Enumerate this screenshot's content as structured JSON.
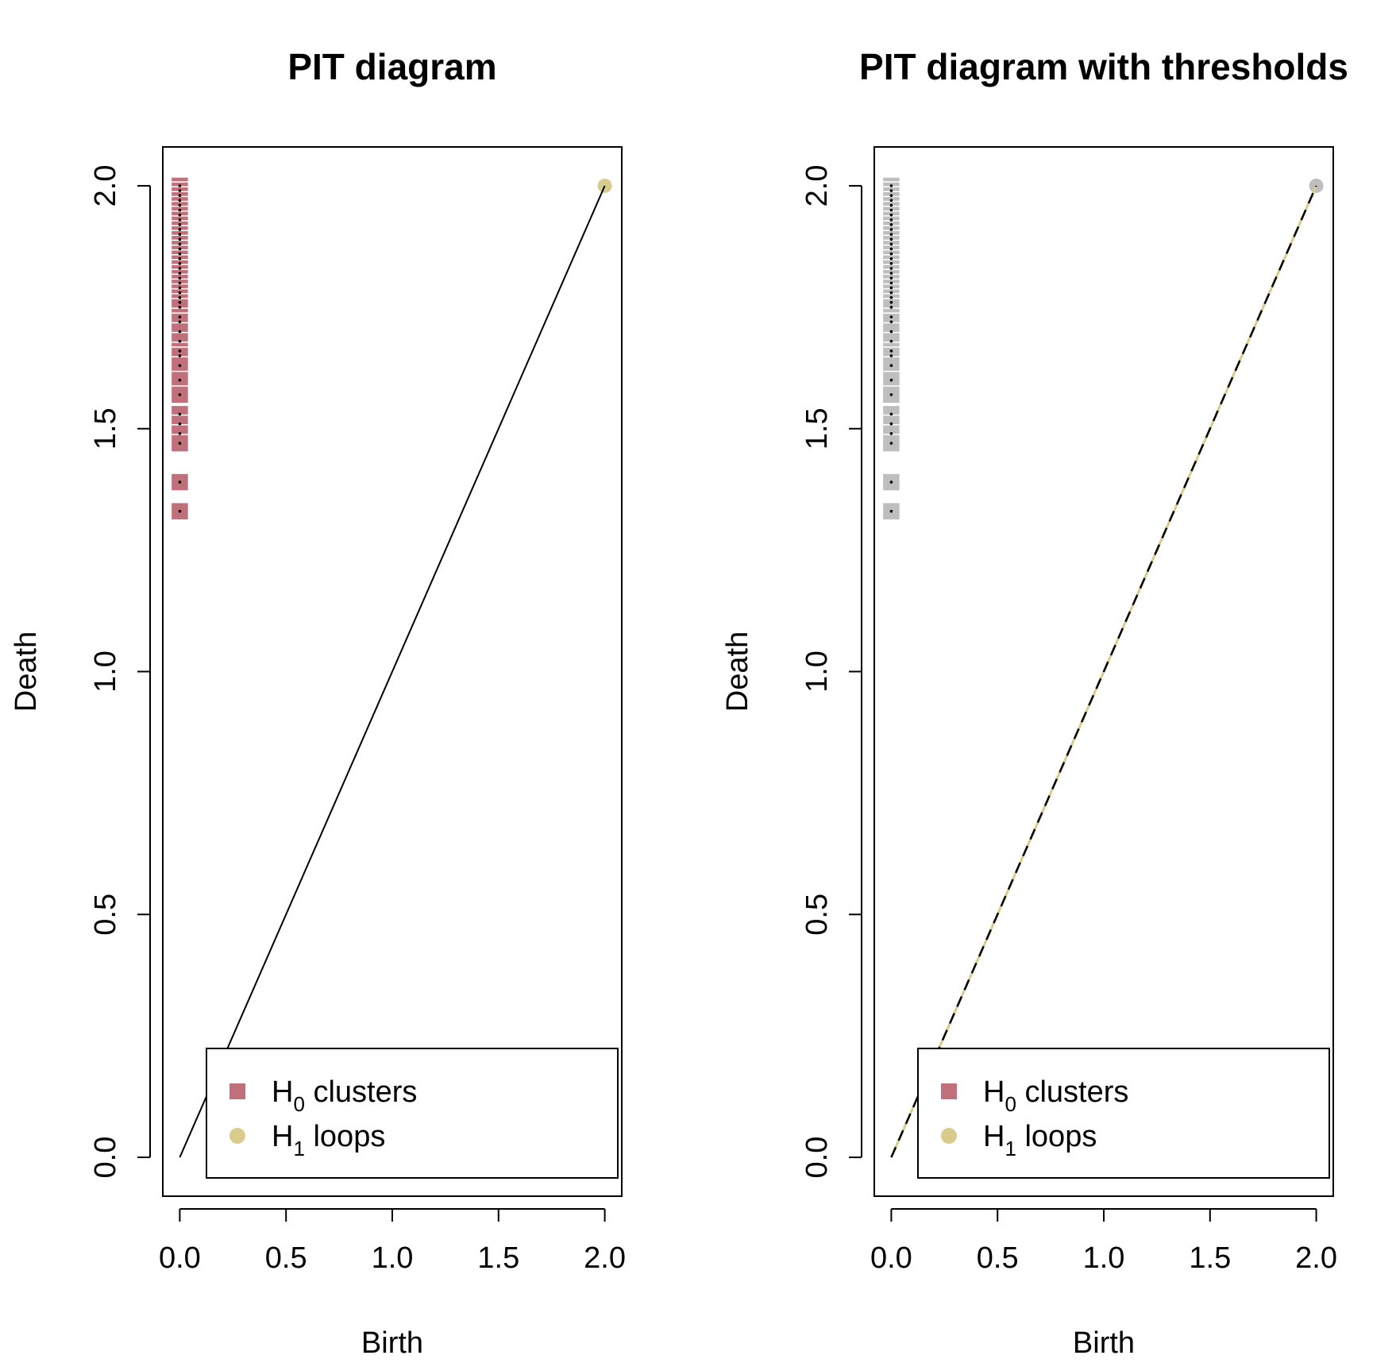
{
  "chart_data": [
    {
      "type": "scatter",
      "title": "PIT  diagram",
      "xlabel": "Birth",
      "ylabel": "Death",
      "xlim": [
        0,
        2
      ],
      "ylim": [
        0,
        2
      ],
      "xticks": [
        "0.0",
        "0.5",
        "1.0",
        "1.5",
        "2.0"
      ],
      "yticks": [
        "0.0",
        "0.5",
        "1.0",
        "1.5",
        "2.0"
      ],
      "grid": false,
      "diagonal": {
        "style": "solid",
        "color": "#000000"
      },
      "legend_position": "bottom-right",
      "legend": [
        {
          "label": "H",
          "sub": "0",
          "rest": "  clusters",
          "marker": "square",
          "color": "#c0707a"
        },
        {
          "label": "H",
          "sub": "1",
          "rest": "  loops",
          "marker": "circle",
          "color": "#d9cb8b"
        }
      ],
      "series": [
        {
          "name": "H0 clusters",
          "marker": "square",
          "color": "#c0707a",
          "x": 0,
          "y": [
            2.0,
            1.99,
            1.98,
            1.97,
            1.96,
            1.95,
            1.94,
            1.93,
            1.92,
            1.91,
            1.9,
            1.89,
            1.88,
            1.87,
            1.86,
            1.85,
            1.84,
            1.83,
            1.82,
            1.81,
            1.8,
            1.79,
            1.78,
            1.77,
            1.76,
            1.75,
            1.73,
            1.72,
            1.7,
            1.68,
            1.66,
            1.65,
            1.63,
            1.6,
            1.57,
            1.53,
            1.51,
            1.49,
            1.47,
            1.39,
            1.33
          ]
        },
        {
          "name": "H1 loops",
          "marker": "circle",
          "color": "#d9cb8b",
          "x": [
            2.0
          ],
          "y": [
            2.0
          ]
        }
      ]
    },
    {
      "type": "scatter",
      "title": "PIT  diagram with thresholds",
      "xlabel": "Birth",
      "ylabel": "Death",
      "xlim": [
        0,
        2
      ],
      "ylim": [
        0,
        2
      ],
      "xticks": [
        "0.0",
        "0.5",
        "1.0",
        "1.5",
        "2.0"
      ],
      "yticks": [
        "0.0",
        "0.5",
        "1.0",
        "1.5",
        "2.0"
      ],
      "grid": false,
      "diagonal": {
        "style": "dashed",
        "color": "#000000",
        "under_color": "#d9cb8b"
      },
      "legend_position": "bottom-right",
      "legend": [
        {
          "label": "H",
          "sub": "0",
          "rest": "  clusters",
          "marker": "square",
          "color": "#c0707a"
        },
        {
          "label": "H",
          "sub": "1",
          "rest": "  loops",
          "marker": "circle",
          "color": "#d9cb8b"
        }
      ],
      "series": [
        {
          "name": "H0 clusters",
          "marker": "square",
          "color": "#bebebe",
          "x": 0,
          "y": [
            2.0,
            1.99,
            1.98,
            1.97,
            1.96,
            1.95,
            1.94,
            1.93,
            1.92,
            1.91,
            1.9,
            1.89,
            1.88,
            1.87,
            1.86,
            1.85,
            1.84,
            1.83,
            1.82,
            1.81,
            1.8,
            1.79,
            1.78,
            1.77,
            1.76,
            1.75,
            1.73,
            1.72,
            1.7,
            1.68,
            1.66,
            1.65,
            1.63,
            1.6,
            1.57,
            1.53,
            1.51,
            1.49,
            1.47,
            1.39,
            1.33
          ]
        },
        {
          "name": "H1 loops",
          "marker": "circle",
          "color": "#bebebe",
          "x": [
            2.0
          ],
          "y": [
            2.0
          ]
        }
      ]
    }
  ]
}
